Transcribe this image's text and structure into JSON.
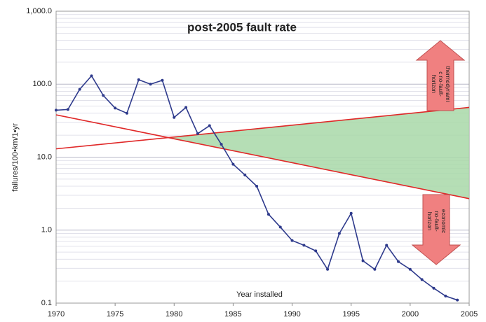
{
  "chart_data": {
    "type": "line",
    "title": "post-2005 fault rate",
    "y_label": "failures/100•km/1•yr",
    "x_label": "Year installed",
    "y_scale": "log",
    "grid": true,
    "minor_grid": true,
    "xlim": [
      1970,
      2005
    ],
    "xticks": [
      1970,
      1975,
      1980,
      1985,
      1990,
      1995,
      2000,
      2005
    ],
    "ylim": [
      0.1,
      1000
    ],
    "yticks": [
      0.1,
      {
        "value": 1,
        "label": "1.0"
      },
      {
        "value": 10,
        "label": "10.0"
      },
      {
        "value": 100,
        "label": "100.0"
      },
      {
        "value": 1000,
        "label": "1,000.0"
      }
    ],
    "series": [
      {
        "color": "#2e3a8c",
        "x": [
          1970,
          1971,
          1972,
          1973,
          1974,
          1975,
          1976,
          1977,
          1978,
          1979,
          1980,
          1981,
          1982,
          1983,
          1984,
          1985,
          1986,
          1987,
          1988,
          1989,
          1990,
          1991,
          1992,
          1993,
          1994,
          1995,
          1996,
          1997,
          1998,
          1999,
          2000,
          2001,
          2002,
          2003,
          2004
        ],
        "values": [
          44,
          45,
          85,
          130,
          70,
          47,
          40,
          115,
          100,
          113,
          35,
          48,
          21,
          27,
          15,
          8,
          5.7,
          4,
          1.65,
          1.1,
          0.72,
          0.62,
          0.52,
          0.29,
          0.9,
          1.7,
          0.38,
          0.29,
          0.62,
          0.37,
          0.29,
          0.21,
          0.16,
          0.125,
          0.11
        ]
      }
    ],
    "trend_lines": [
      {
        "color": "#e02828",
        "x": [
          1970,
          2005
        ],
        "values": [
          38,
          2.7
        ]
      },
      {
        "color": "#e02828",
        "x": [
          1970,
          2005
        ],
        "values": [
          13,
          48
        ]
      }
    ],
    "shade_color": "#a8d8a8",
    "annotations": [
      {
        "lines": [
          "thermodynami",
          "c no-fault-",
          "horizon"
        ],
        "direction": "up",
        "color": "#f08080"
      },
      {
        "lines": [
          "economic",
          "no-fault-",
          "horizon"
        ],
        "direction": "down",
        "color": "#f08080"
      }
    ]
  }
}
